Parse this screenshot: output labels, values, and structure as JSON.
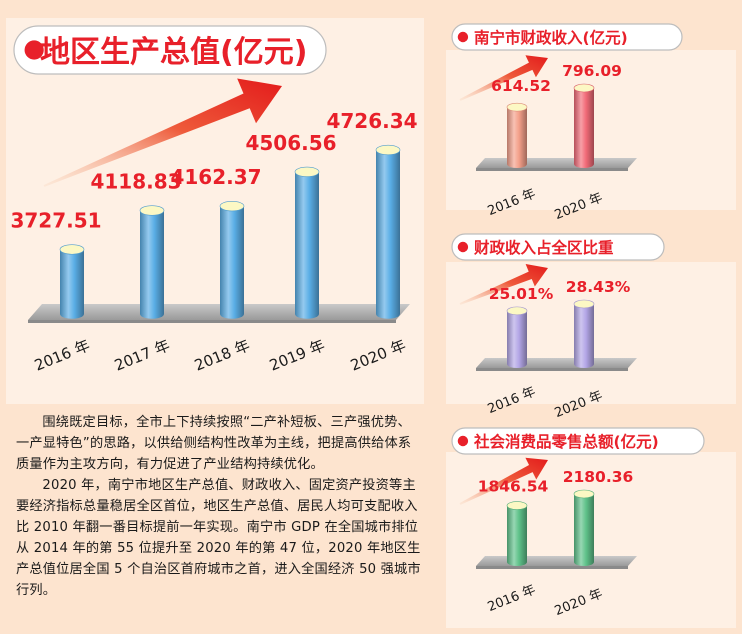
{
  "colors": {
    "background": "#fde4cf",
    "panel": "#fef0e4",
    "accent_red": "#e8202a",
    "value_red": "#e8202a",
    "gdp_bar": "#5aaee6",
    "revenue_2016_bar": "#f4a08a",
    "revenue_2020_bar": "#f26b78",
    "share_bar": "#b3a6e6",
    "retail_bar": "#5fc28a"
  },
  "chart_data": [
    {
      "type": "bar",
      "title": "地区生产总值(亿元)",
      "categories": [
        "2016 年",
        "2017 年",
        "2018 年",
        "2019 年",
        "2020 年"
      ],
      "values": [
        3727.51,
        4118.83,
        4162.37,
        4506.56,
        4726.34
      ],
      "value_labels": [
        "3727.51",
        "4118.83",
        "4162.37",
        "4506.56",
        "4726.34"
      ]
    },
    {
      "type": "bar",
      "title": "南宁市财政收入(亿元)",
      "categories": [
        "2016 年",
        "2020 年"
      ],
      "values": [
        614.52,
        796.09
      ],
      "value_labels": [
        "614.52",
        "796.09"
      ]
    },
    {
      "type": "bar",
      "title": "财政收入占全区比重",
      "categories": [
        "2016 年",
        "2020 年"
      ],
      "values": [
        25.01,
        28.43
      ],
      "value_labels": [
        "25.01%",
        "28.43%"
      ]
    },
    {
      "type": "bar",
      "title": "社会消费品零售总额(亿元)",
      "categories": [
        "2016 年",
        "2020 年"
      ],
      "values": [
        1846.54,
        2180.36
      ],
      "value_labels": [
        "1846.54",
        "2180.36"
      ]
    }
  ],
  "article": {
    "paragraphs": [
      "围绕既定目标，全市上下持续按照“二产补短板、三产强优势、一产显特色”的思路，以供给侧结构性改革为主线，把提高供给体系质量作为主攻方向，有力促进了产业结构持续优化。",
      "2020 年，南宁市地区生产总值、财政收入、固定资产投资等主要经济指标总量稳居全区首位，地区生产总值、居民人均可支配收入比 2010 年翻一番目标提前一年实现。南宁市 GDP 在全国城市排位从 2014 年的第 55 位提升至 2020 年的第 47 位，2020 年地区生产总值位居全国 5 个自治区首府城市之首，进入全国经济 50 强城市行列。"
    ]
  }
}
